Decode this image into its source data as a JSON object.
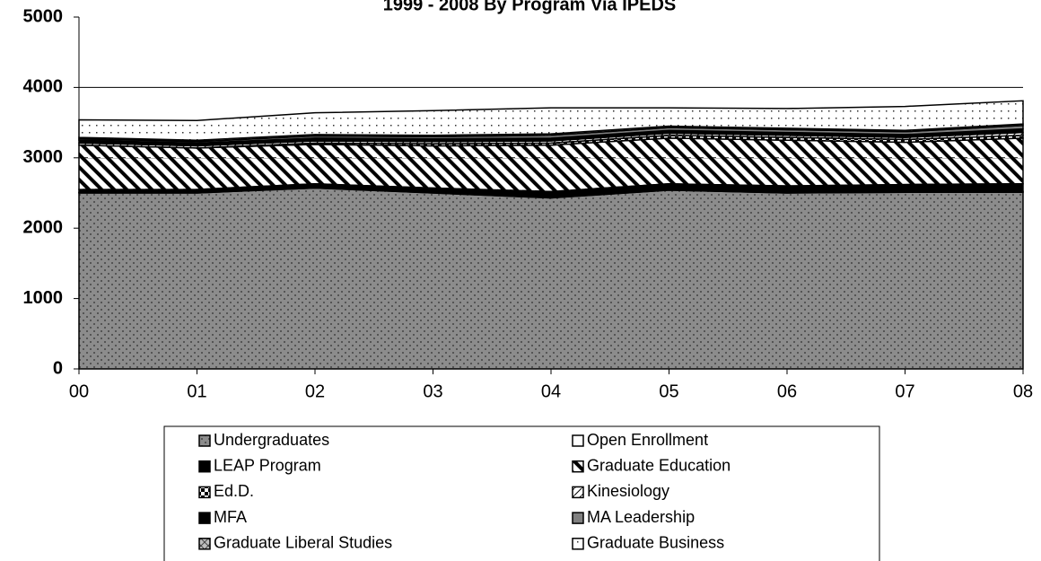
{
  "chart_data": {
    "type": "stacked_area",
    "title": "1999 - 2008 By Program Via IPEDS",
    "categories": [
      "00",
      "01",
      "02",
      "03",
      "04",
      "05",
      "06",
      "07",
      "08"
    ],
    "ylim": [
      0,
      5000
    ],
    "yticks": [
      0,
      1000,
      2000,
      3000,
      4000,
      5000
    ],
    "grid": true,
    "series": [
      {
        "name": "Undergraduates",
        "color": "#8c8c8c",
        "values": [
          2500,
          2500,
          2570,
          2500,
          2430,
          2540,
          2500,
          2510,
          2510
        ]
      },
      {
        "name": "Open Enrollment",
        "color": "#ffffff",
        "values": [
          10,
          10,
          10,
          10,
          10,
          10,
          10,
          10,
          10
        ]
      },
      {
        "name": "LEAP Program",
        "color": "#000000",
        "values": [
          40,
          40,
          50,
          60,
          80,
          80,
          90,
          100,
          110
        ]
      },
      {
        "name": "Graduate Education",
        "color": "#ffffff",
        "values": [
          630,
          590,
          560,
          600,
          660,
          650,
          650,
          600,
          650
        ]
      },
      {
        "name": "Ed.D.",
        "color": "#ffffff",
        "values": [
          0,
          0,
          20,
          30,
          30,
          40,
          40,
          40,
          40
        ]
      },
      {
        "name": "Kinesiology",
        "color": "#ffffff",
        "values": [
          30,
          30,
          30,
          30,
          30,
          30,
          30,
          30,
          40
        ]
      },
      {
        "name": "MFA",
        "color": "#000000",
        "values": [
          40,
          40,
          40,
          40,
          40,
          40,
          40,
          40,
          50
        ]
      },
      {
        "name": "MA  Leadership",
        "color": "#808080",
        "values": [
          20,
          20,
          30,
          30,
          40,
          40,
          40,
          40,
          50
        ]
      },
      {
        "name": "Graduate Liberal Studies",
        "color": "#bfbfbf",
        "values": [
          20,
          20,
          20,
          20,
          20,
          20,
          20,
          20,
          20
        ]
      },
      {
        "name": "Graduate Business",
        "color": "#ffffff",
        "values": [
          250,
          280,
          310,
          350,
          370,
          260,
          280,
          340,
          330
        ]
      }
    ]
  }
}
